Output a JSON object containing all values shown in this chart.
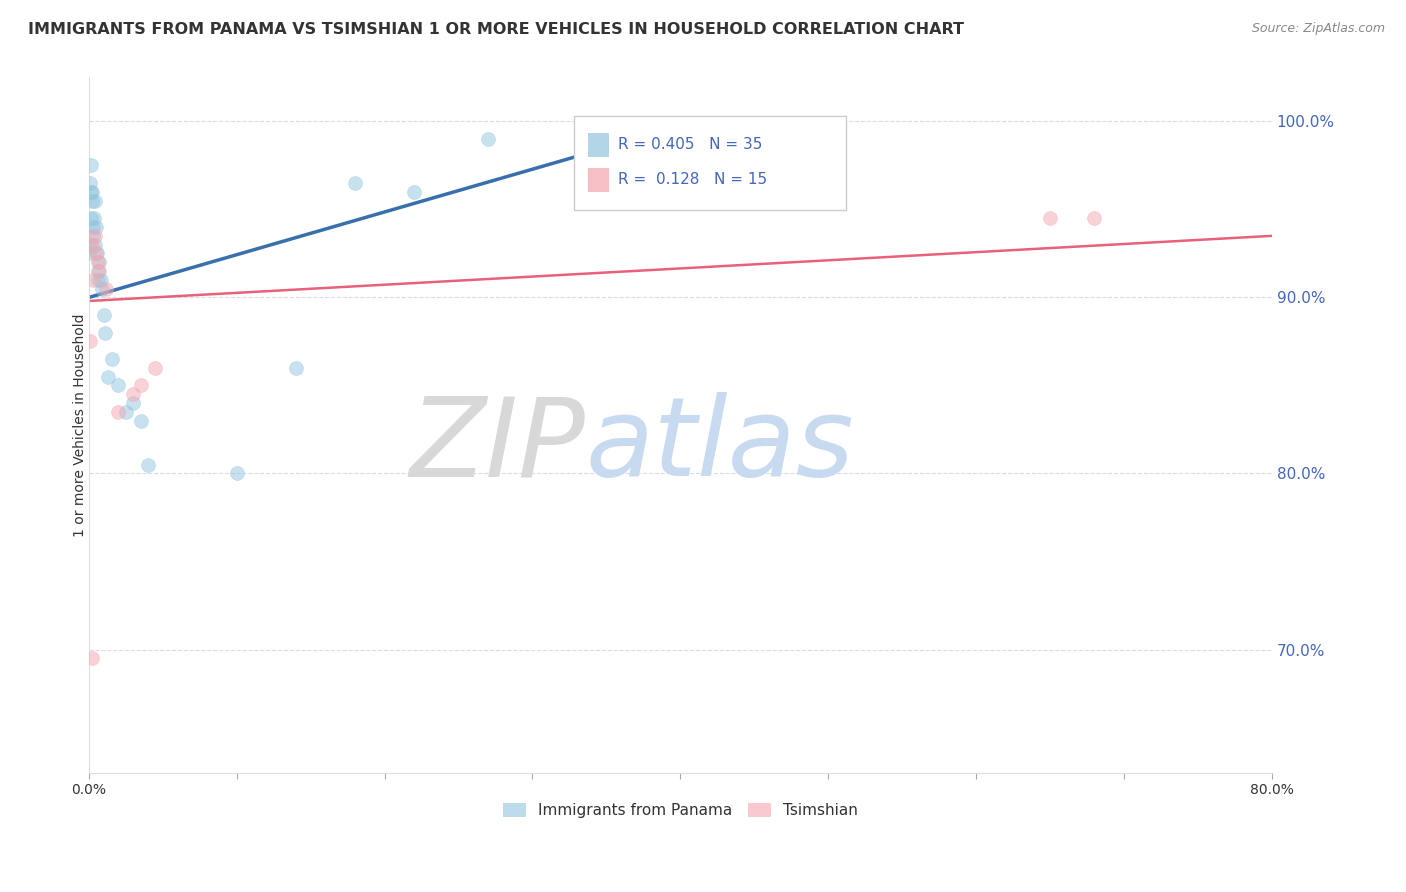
{
  "title": "IMMIGRANTS FROM PANAMA VS TSIMSHIAN 1 OR MORE VEHICLES IN HOUSEHOLD CORRELATION CHART",
  "source": "Source: ZipAtlas.com",
  "ylabel": "1 or more Vehicles in Household",
  "y_ticks": [
    70.0,
    80.0,
    90.0,
    100.0
  ],
  "y_tick_labels": [
    "70.0%",
    "80.0%",
    "90.0%",
    "100.0%"
  ],
  "x_range": [
    0.0,
    80.0
  ],
  "y_range": [
    63.0,
    102.5
  ],
  "legend_r_blue": "R = 0.405",
  "legend_n_blue": "N = 35",
  "legend_r_pink": "R =  0.128",
  "legend_n_pink": "N = 15",
  "legend_label_blue": "Immigrants from Panama",
  "legend_label_pink": "Tsimshian",
  "blue_color": "#92c5de",
  "pink_color": "#f4a6b0",
  "blue_line_color": "#3a6fad",
  "pink_line_color": "#e8607a",
  "watermark_zip": "ZIP",
  "watermark_atlas": "atlas",
  "watermark_zip_color": "#d8d8d8",
  "watermark_atlas_color": "#c8daf0",
  "blue_x": [
    0.05,
    0.08,
    0.1,
    0.12,
    0.15,
    0.18,
    0.2,
    0.25,
    0.28,
    0.3,
    0.35,
    0.4,
    0.45,
    0.5,
    0.55,
    0.6,
    0.65,
    0.7,
    0.8,
    0.9,
    1.0,
    1.1,
    1.3,
    1.6,
    2.0,
    2.5,
    3.0,
    3.5,
    4.0,
    10.0,
    14.0,
    18.0,
    22.0,
    27.0,
    35.0
  ],
  "blue_y": [
    92.5,
    93.0,
    96.5,
    97.5,
    94.5,
    96.0,
    95.5,
    96.0,
    94.0,
    93.5,
    94.5,
    95.5,
    93.0,
    94.0,
    92.5,
    91.5,
    91.0,
    92.0,
    91.0,
    90.5,
    89.0,
    88.0,
    85.5,
    86.5,
    85.0,
    83.5,
    84.0,
    83.0,
    80.5,
    80.0,
    86.0,
    96.5,
    96.0,
    99.0,
    97.0
  ],
  "pink_x": [
    0.08,
    0.2,
    0.3,
    0.4,
    0.5,
    0.6,
    0.7,
    1.2,
    2.0,
    3.0,
    3.5,
    4.5,
    65.0,
    68.0
  ],
  "pink_y": [
    87.5,
    93.0,
    91.0,
    93.5,
    92.5,
    92.0,
    91.5,
    90.5,
    83.5,
    84.5,
    85.0,
    86.0,
    94.5,
    94.5
  ],
  "tsim_lone_x": [
    0.25
  ],
  "tsim_lone_y": [
    69.5
  ],
  "blue_line_x": [
    0.0,
    35.0
  ],
  "blue_line_y": [
    90.0,
    98.5
  ],
  "pink_line_x": [
    0.0,
    80.0
  ],
  "pink_line_y": [
    89.8,
    93.5
  ],
  "marker_size": 100,
  "marker_alpha": 0.5,
  "background_color": "#ffffff",
  "grid_color": "#cccccc",
  "title_color": "#333333",
  "axis_tick_color": "#4466bb",
  "axis_label_color": "#333333"
}
